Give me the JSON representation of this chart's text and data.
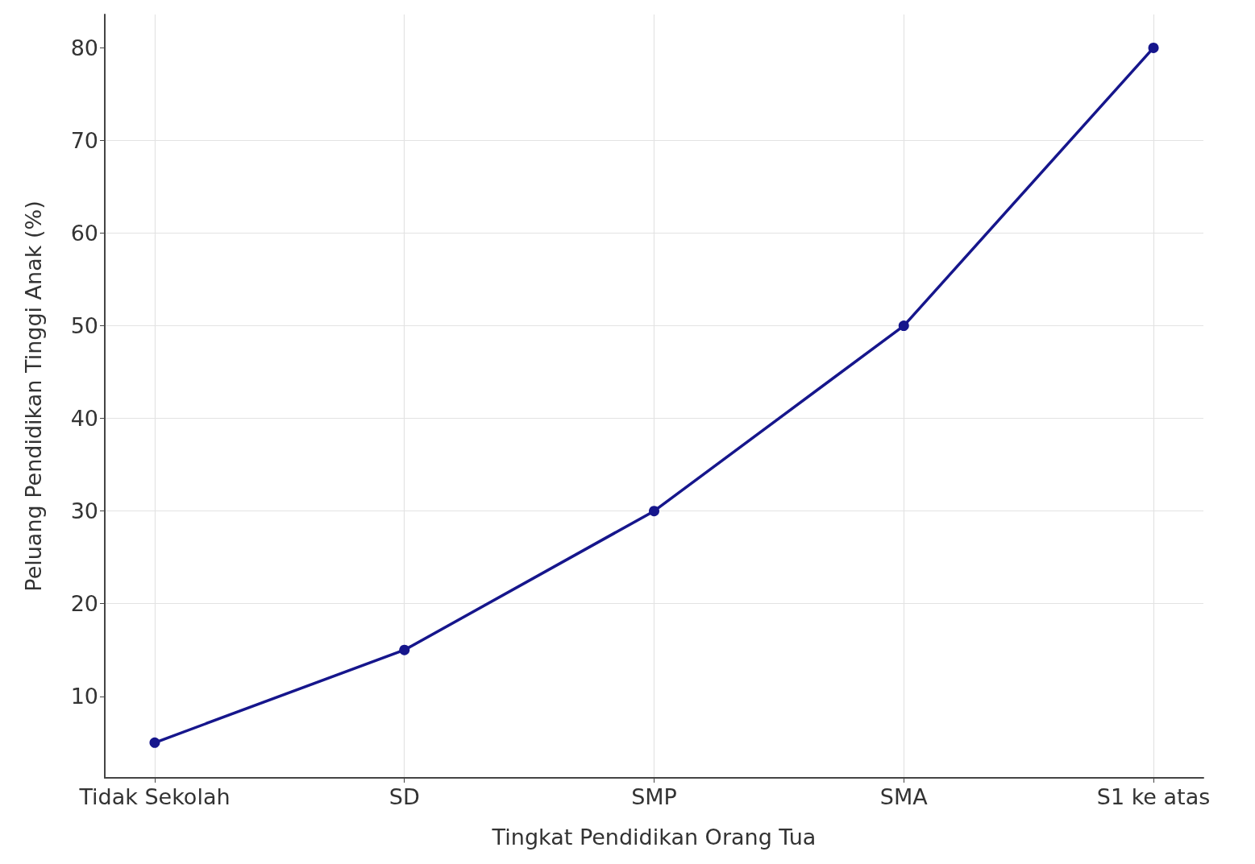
{
  "chart_data": {
    "type": "line",
    "xlabel": "Tingkat Pendidikan Orang Tua",
    "ylabel": "Peluang Pendidikan Tinggi Anak (%)",
    "categories": [
      "Tidak Sekolah",
      "SD",
      "SMP",
      "SMA",
      "S1 ke atas"
    ],
    "series": [
      {
        "color": "#16168c",
        "values": [
          5,
          15,
          30,
          50,
          80
        ]
      }
    ],
    "ylim": [
      1.2,
      83.6
    ],
    "yticks": [
      10,
      20,
      30,
      40,
      50,
      60,
      70,
      80
    ],
    "grid": true,
    "marker": "circle",
    "line_style": "solid"
  }
}
